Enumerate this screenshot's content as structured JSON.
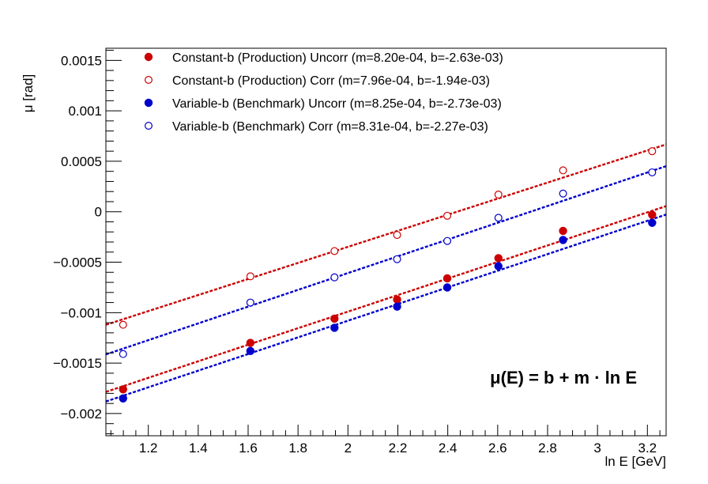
{
  "chart_data": {
    "type": "scatter",
    "xlabel": "ln E  [GeV]",
    "ylabel": "μ  [rad]",
    "xlim": [
      1.03,
      3.275
    ],
    "ylim": [
      -0.00222,
      0.00162
    ],
    "xticks": [
      1.2,
      1.4,
      1.6,
      1.8,
      2,
      2.2,
      2.4,
      2.6,
      2.8,
      3,
      3.2
    ],
    "xtick_labels": [
      "1.2",
      "1.4",
      "1.6",
      "1.8",
      "2",
      "2.2",
      "2.4",
      "2.6",
      "2.8",
      "3",
      "3.2"
    ],
    "yticks": [
      -0.002,
      -0.0015,
      -0.001,
      -0.0005,
      0,
      0.0005,
      0.001,
      0.0015
    ],
    "ytick_labels": [
      "−0.002",
      "−0.0015",
      "−0.001",
      "−0.0005",
      "0",
      "0.0005",
      "0.001",
      "0.0015"
    ],
    "grid": false,
    "legend_position": "top-left",
    "annotation": "μ(E) = b + m · ln E",
    "x": [
      1.099,
      1.609,
      1.946,
      2.197,
      2.398,
      2.603,
      2.862,
      3.219
    ],
    "series": [
      {
        "name": "Constant-b (Production) Uncorr  (m=8.20e-04, b=-2.63e-03)",
        "marker": "filled",
        "color": "#cc0000",
        "y": [
          -0.00176,
          -0.0013,
          -0.00106,
          -0.00087,
          -0.00066,
          -0.00046,
          -0.00019,
          -3e-05
        ],
        "fit": {
          "m": 0.00082,
          "b": -0.00263
        }
      },
      {
        "name": "Constant-b (Production) Corr  (m=7.96e-04, b=-1.94e-03)",
        "marker": "open",
        "color": "#cc0000",
        "y": [
          -0.00112,
          -0.00064,
          -0.00039,
          -0.00023,
          -4e-05,
          0.00017,
          0.00041,
          0.0006
        ],
        "fit": {
          "m": 0.000796,
          "b": -0.00194
        }
      },
      {
        "name": "Variable-b (Benchmark) Uncorr  (m=8.25e-04, b=-2.73e-03)",
        "marker": "filled",
        "color": "#0000cc",
        "y": [
          -0.00185,
          -0.00138,
          -0.00115,
          -0.00094,
          -0.00075,
          -0.00054,
          -0.00028,
          -0.00011
        ],
        "fit": {
          "m": 0.000825,
          "b": -0.00273
        }
      },
      {
        "name": "Variable-b (Benchmark) Corr  (m=8.31e-04, b=-2.27e-03)",
        "marker": "open",
        "color": "#0000cc",
        "y": [
          -0.00141,
          -0.0009,
          -0.00065,
          -0.00047,
          -0.00029,
          -6e-05,
          0.00018,
          0.00039
        ],
        "fit": {
          "m": 0.000831,
          "b": -0.00227
        }
      }
    ]
  }
}
